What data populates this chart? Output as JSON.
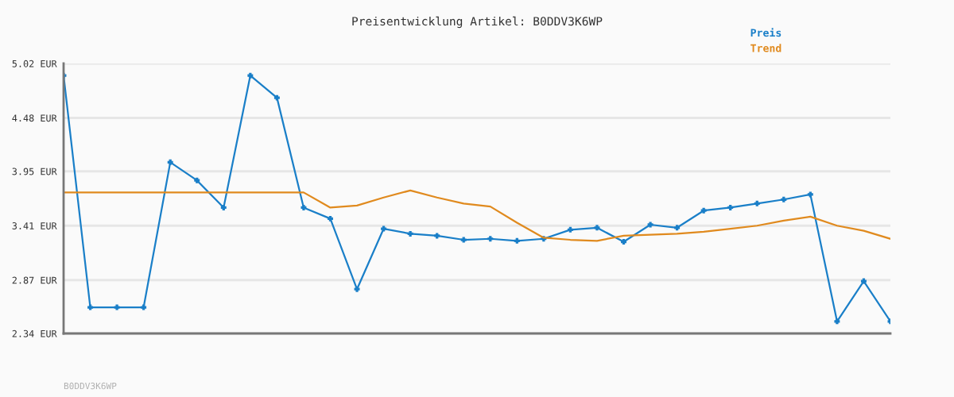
{
  "chart_data": {
    "type": "line",
    "title": "Preisentwicklung Artikel: B0DDV3K6WP",
    "categories": [
      null,
      null,
      null,
      null,
      null,
      null,
      null,
      null,
      null,
      null,
      null,
      null,
      null,
      null,
      null,
      null,
      null,
      null,
      null,
      null,
      null,
      null,
      null,
      null,
      null,
      null,
      null,
      null,
      null,
      null,
      null,
      null
    ],
    "series": [
      {
        "name": "Preis",
        "color": "#1a7fc8",
        "marker": "cross",
        "values": [
          4.9,
          2.6,
          2.6,
          2.6,
          4.04,
          3.86,
          3.59,
          4.9,
          4.68,
          3.59,
          3.48,
          2.78,
          3.38,
          3.33,
          3.31,
          3.27,
          3.28,
          3.26,
          3.28,
          3.37,
          3.39,
          3.25,
          3.42,
          3.39,
          3.56,
          3.59,
          3.63,
          3.67,
          3.72,
          2.46,
          2.86,
          2.46
        ]
      },
      {
        "name": "Trend",
        "color": "#e08a1e",
        "marker": "none",
        "values": [
          3.74,
          3.74,
          3.74,
          3.74,
          3.74,
          3.74,
          3.74,
          3.74,
          3.74,
          3.74,
          3.59,
          3.61,
          3.69,
          3.76,
          3.69,
          3.63,
          3.6,
          3.44,
          3.29,
          3.27,
          3.26,
          3.31,
          3.32,
          3.33,
          3.35,
          3.38,
          3.41,
          3.46,
          3.5,
          3.41,
          3.36,
          3.28
        ]
      }
    ],
    "ylim": [
      2.34,
      5.02
    ],
    "yticks": [
      {
        "value": 2.34,
        "label": "2.34 EUR"
      },
      {
        "value": 2.87,
        "label": "2.87 EUR"
      },
      {
        "value": 3.41,
        "label": "3.41 EUR"
      },
      {
        "value": 3.95,
        "label": "3.95 EUR"
      },
      {
        "value": 4.48,
        "label": "4.48 EUR"
      },
      {
        "value": 5.02,
        "label": "5.02 EUR"
      }
    ],
    "grid": "y",
    "legend": "top right",
    "line_style": "solid",
    "annotations": [
      "B0DDV3K6WP"
    ]
  }
}
